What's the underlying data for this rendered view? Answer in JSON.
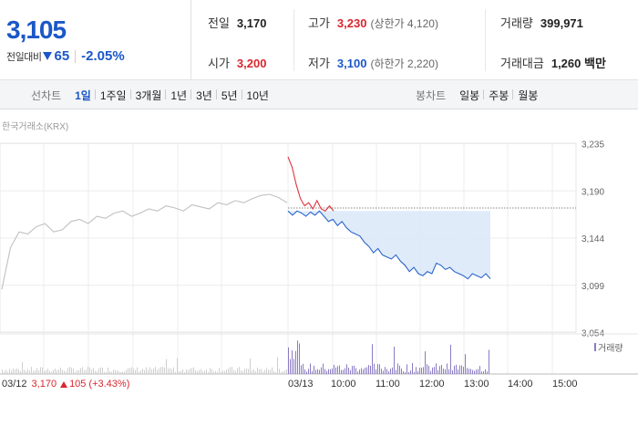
{
  "quote": {
    "price": "3,105",
    "change_label": "전일대비",
    "change": "65",
    "change_pct": "-2.05%",
    "colors": {
      "down": "#1b57c8",
      "up": "#d8262f"
    }
  },
  "stats": {
    "prev_close": {
      "label": "전일",
      "value": "3,170"
    },
    "open": {
      "label": "시가",
      "value": "3,200"
    },
    "high": {
      "label": "고가",
      "value": "3,230",
      "sub": "(상한가 4,120)"
    },
    "low": {
      "label": "저가",
      "value": "3,100",
      "sub": "(하한가 2,220)"
    },
    "volume": {
      "label": "거래량",
      "value": "399,971"
    },
    "turnover": {
      "label": "거래대금",
      "value": "1,260 백만"
    }
  },
  "tabs": {
    "line_label": "선차트",
    "line_items": [
      "1일",
      "1주일",
      "3개월",
      "1년",
      "3년",
      "5년",
      "10년"
    ],
    "line_active": "1일",
    "candle_label": "봉차트",
    "candle_items": [
      "일봉",
      "주봉",
      "월봉"
    ]
  },
  "chart": {
    "source": "한국거래소(KRX)",
    "y_ticks": [
      "3,235",
      "3,190",
      "3,144",
      "3,099",
      "3,054"
    ],
    "x_ticks": [
      "03/13",
      "10:00",
      "11:00",
      "12:00",
      "13:00",
      "14:00",
      "15:00"
    ],
    "prev_day_label": "03/12",
    "prev_day_price": "3,170",
    "prev_day_change": "105",
    "prev_day_pct": "(+3.43%)",
    "volume_legend": "거래량"
  },
  "chart_data": {
    "type": "line",
    "ylim": [
      3054,
      3235
    ],
    "reference_line": 3170,
    "series": [
      {
        "values": [
          3095,
          3135,
          3150,
          3148,
          3155,
          3158,
          3150,
          3152,
          3160,
          3162,
          3158,
          3165,
          3163,
          3168,
          3170,
          3165,
          3168,
          3172,
          3170,
          3175,
          3173,
          3170,
          3176,
          3174,
          3172,
          3178,
          3176,
          3180,
          3178,
          3182,
          3185,
          3186,
          3183,
          3178
        ]
      },
      {
        "values": [
          3222,
          3212,
          3195,
          3182,
          3175,
          3178,
          3172,
          3180,
          3172,
          3170,
          3175,
          3170
        ]
      },
      {
        "values": [
          3170,
          3166,
          3170,
          3168,
          3165,
          3169,
          3166,
          3170,
          3165,
          3160,
          3162,
          3156,
          3160,
          3154,
          3150,
          3148,
          3146,
          3140,
          3136,
          3130,
          3134,
          3128,
          3126,
          3124,
          3128,
          3122,
          3118,
          3112,
          3116,
          3110,
          3108,
          3112,
          3110,
          3120,
          3118,
          3114,
          3116,
          3112,
          3110,
          3108,
          3105,
          3110,
          3108,
          3106,
          3110,
          3105
        ]
      }
    ]
  }
}
